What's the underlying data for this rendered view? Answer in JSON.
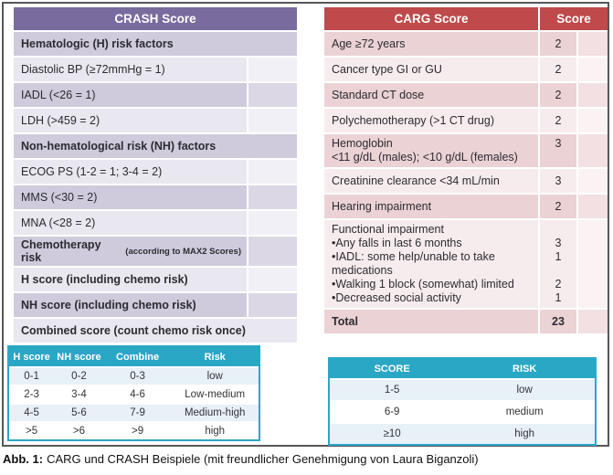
{
  "caption": {
    "label": "Abb. 1:",
    "text": "CARG und CRASH Beispiele (mit freundlicher Genehmigung von Laura Biganzoli)"
  },
  "colors": {
    "crash_header": "#7a6b9e",
    "crash_row_dark": "#cfcbdc",
    "crash_row_light": "#e9e7f0",
    "carg_header": "#be4a4b",
    "carg_row_dark": "#ebd2d5",
    "carg_row_light": "#f7eced",
    "teal_header": "#2ba7c6",
    "teal_row_light": "#e7f1f7",
    "frame_border": "#57575a"
  },
  "crash_table": {
    "title": "CRASH Score",
    "rows": [
      {
        "text": "Hematologic (H) risk factors",
        "bold": true,
        "full": true
      },
      {
        "text": "Diastolic BP (≥72mmHg = 1)",
        "bold": false,
        "full": false
      },
      {
        "text": "IADL (<26 = 1)",
        "bold": false,
        "full": false
      },
      {
        "text": "LDH (>459 = 2)",
        "bold": false,
        "full": false
      },
      {
        "text": "Non-hematological risk (NH) factors",
        "bold": true,
        "full": true
      },
      {
        "text": "ECOG PS (1-2 = 1; 3-4 = 2)",
        "bold": false,
        "full": false
      },
      {
        "text": "MMS (<30 = 2)",
        "bold": false,
        "full": false
      },
      {
        "text": "MNA (<28 = 2)",
        "bold": false,
        "full": false
      },
      {
        "text": "Chemotherapy risk",
        "suffix": "(according to MAX2 Scores)",
        "bold": true,
        "full": false
      },
      {
        "text": "H score (including chemo risk)",
        "bold": true,
        "full": false
      },
      {
        "text": "NH score (including chemo risk)",
        "bold": true,
        "full": false
      },
      {
        "text": "Combined score (count chemo risk once)",
        "bold": true,
        "full": true
      }
    ]
  },
  "carg_table": {
    "title": "CARG Score",
    "score_header": "Score",
    "rows": [
      {
        "bold": false,
        "lines": [
          {
            "text": "Age ≥72 years",
            "score": "2"
          }
        ]
      },
      {
        "bold": false,
        "lines": [
          {
            "text": "Cancer type GI or GU",
            "score": "2"
          }
        ]
      },
      {
        "bold": false,
        "lines": [
          {
            "text": "Standard CT dose",
            "score": "2"
          }
        ]
      },
      {
        "bold": false,
        "lines": [
          {
            "text": "Polychemotherapy (>1 CT drug)",
            "score": "2"
          }
        ]
      },
      {
        "bold": false,
        "lines": [
          {
            "text": "Hemoglobin",
            "score": "3"
          },
          {
            "text": "<11 g/dL (males); <10 g/dL (females)",
            "score": ""
          }
        ]
      },
      {
        "bold": false,
        "lines": [
          {
            "text": "Creatinine clearance <34 mL/min",
            "score": "3"
          }
        ]
      },
      {
        "bold": false,
        "lines": [
          {
            "text": "Hearing impairment",
            "score": "2"
          }
        ]
      },
      {
        "bold": false,
        "lines": [
          {
            "text": "Functional impairment",
            "score": ""
          },
          {
            "text": "•Any falls in last 6 months",
            "score": "3"
          },
          {
            "text": "•IADL: some help/unable to take",
            "score": "1"
          },
          {
            "text": "medications",
            "score": ""
          },
          {
            "text": "•Walking 1 block (somewhat) limited",
            "score": "2"
          },
          {
            "text": "•Decreased social activity",
            "score": "1"
          }
        ]
      },
      {
        "bold": true,
        "lines": [
          {
            "text": "Total",
            "score": "23"
          }
        ]
      }
    ]
  },
  "crash_risk_table": {
    "headers": [
      "H score",
      "NH score",
      "Combine",
      "Risk"
    ],
    "rows": [
      [
        "0-1",
        "0-2",
        "0-3",
        "low"
      ],
      [
        "2-3",
        "3-4",
        "4-6",
        "Low-medium"
      ],
      [
        "4-5",
        "5-6",
        "7-9",
        "Medium-high"
      ],
      [
        ">5",
        ">6",
        ">9",
        "high"
      ]
    ]
  },
  "carg_risk_table": {
    "headers": [
      "SCORE",
      "RISK"
    ],
    "rows": [
      [
        "1-5",
        "low"
      ],
      [
        "6-9",
        "medium"
      ],
      [
        "≥10",
        "high"
      ]
    ]
  }
}
